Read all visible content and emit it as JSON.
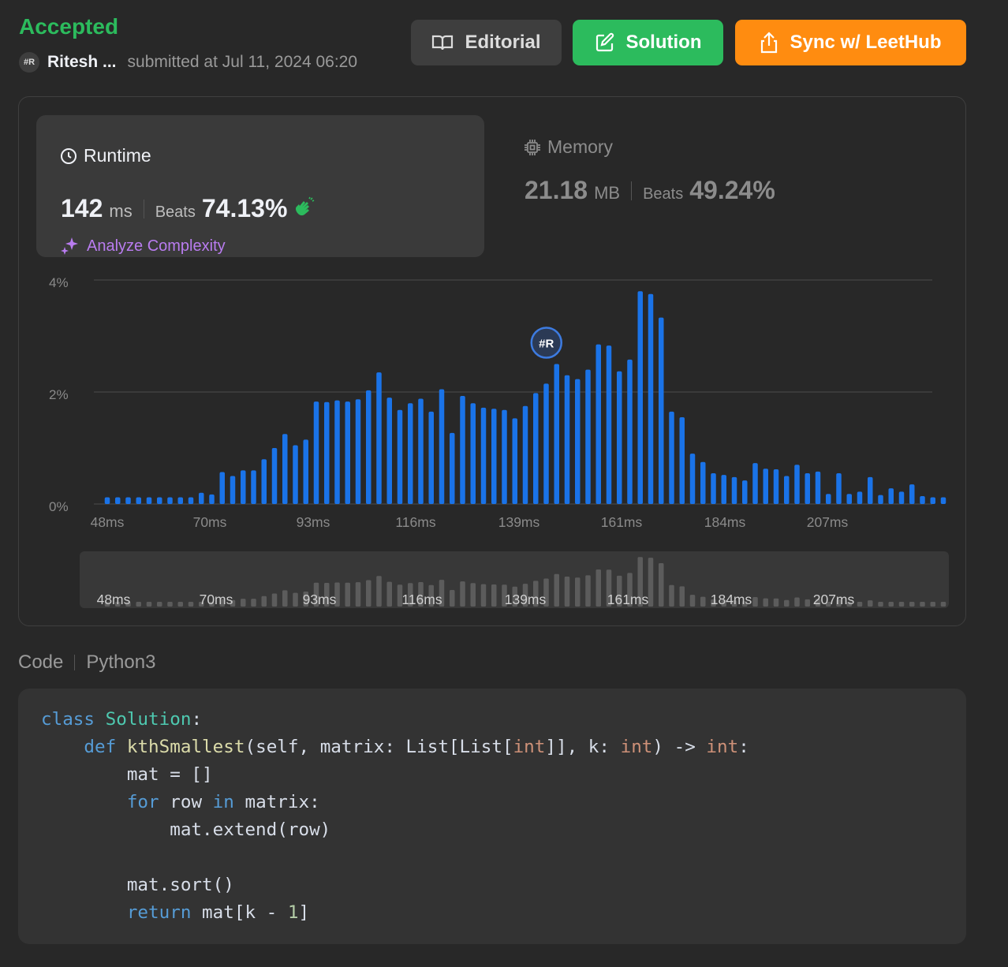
{
  "header": {
    "status": "Accepted",
    "avatar_text": "#R",
    "username": "Ritesh ...",
    "submitted_text": "submitted at Jul 11, 2024 06:20"
  },
  "buttons": {
    "editorial": "Editorial",
    "solution": "Solution",
    "sync": "Sync w/ LeetHub"
  },
  "runtime": {
    "title": "Runtime",
    "value": "142",
    "unit": "ms",
    "beats_label": "Beats",
    "beats": "74.13%",
    "analyze": "Analyze Complexity"
  },
  "memory": {
    "title": "Memory",
    "value": "21.18",
    "unit": "MB",
    "beats_label": "Beats",
    "beats": "49.24%"
  },
  "colors": {
    "accepted": "#2cbb5d",
    "bar": "#1a73e8",
    "sync": "#ff8c10",
    "analyze": "#b97cf0"
  },
  "chart_data": {
    "type": "bar",
    "ylim": [
      0,
      4
    ],
    "y_ticks": [
      "4%",
      "2%",
      "0%"
    ],
    "x_ticks": [
      "48ms",
      "70ms",
      "93ms",
      "116ms",
      "139ms",
      "161ms",
      "184ms",
      "207ms"
    ],
    "grid": true,
    "unit": "percent of submissions",
    "values": [
      0.12,
      0.12,
      0.12,
      0.12,
      0.12,
      0.12,
      0.12,
      0.12,
      0.12,
      0.2,
      0.17,
      0.57,
      0.5,
      0.6,
      0.6,
      0.8,
      1.0,
      1.25,
      1.05,
      1.15,
      1.83,
      1.82,
      1.85,
      1.83,
      1.87,
      2.03,
      2.35,
      1.9,
      1.68,
      1.8,
      1.88,
      1.65,
      2.05,
      1.27,
      1.93,
      1.8,
      1.72,
      1.7,
      1.68,
      1.53,
      1.75,
      1.98,
      2.15,
      2.5,
      2.3,
      2.23,
      2.4,
      2.85,
      2.83,
      2.37,
      2.58,
      3.8,
      3.75,
      3.33,
      1.65,
      1.55,
      0.9,
      0.75,
      0.55,
      0.52,
      0.48,
      0.42,
      0.73,
      0.63,
      0.62,
      0.5,
      0.7,
      0.55,
      0.58,
      0.18,
      0.55,
      0.18,
      0.22,
      0.48,
      0.16,
      0.28,
      0.22,
      0.35,
      0.14,
      0.12,
      0.12
    ],
    "highlight_index": 43,
    "highlight_label": "#R",
    "minimap_ticks": [
      "48ms",
      "70ms",
      "93ms",
      "116ms",
      "139ms",
      "161ms",
      "184ms",
      "207ms"
    ]
  },
  "code": {
    "label": "Code",
    "language": "Python3"
  }
}
